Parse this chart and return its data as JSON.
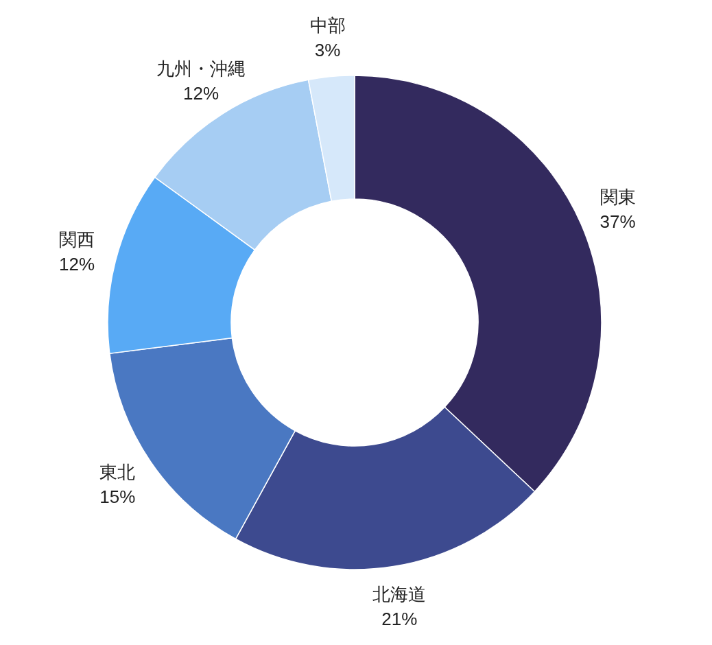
{
  "chart_data": {
    "type": "donut",
    "categories": [
      "関東",
      "北海道",
      "東北",
      "関西",
      "九州・沖縄",
      "中部"
    ],
    "values": [
      37,
      21,
      15,
      12,
      12,
      3
    ],
    "colors": [
      "#332a5e",
      "#3d4a8f",
      "#4a78c2",
      "#58aaf5",
      "#a6cdf3",
      "#d6e8fa"
    ],
    "value_labels": [
      "37%",
      "21%",
      "15%",
      "12%",
      "12%",
      "3%"
    ]
  }
}
